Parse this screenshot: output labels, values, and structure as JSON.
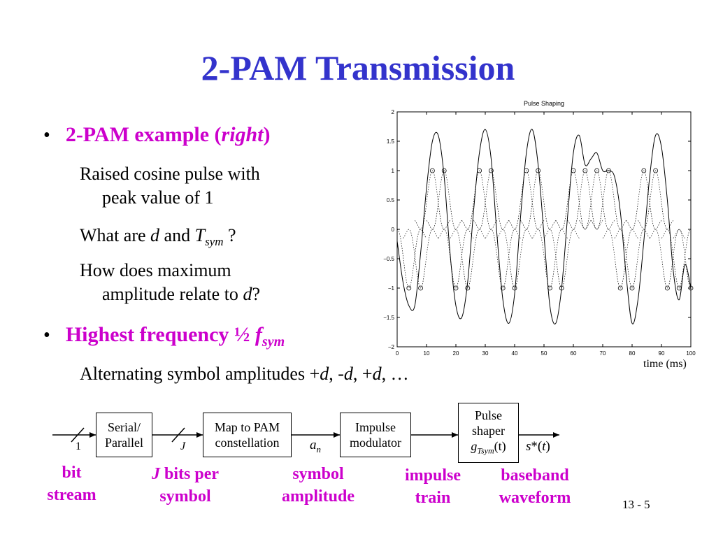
{
  "slide": {
    "title": "2-PAM Transmission",
    "page_number": "13 - 5"
  },
  "bullets": {
    "b1_dot": "•",
    "b1_text": "2-PAM example (",
    "b1_italic": "right",
    "b1_close": ")",
    "s1_line1": "Raised cosine pulse with",
    "s1_line2": "peak value of 1",
    "s2_pre": "What are ",
    "s2_d": "d",
    "s2_mid": " and ",
    "s2_T": "T",
    "s2_sub": "sym",
    "s2_end": " ?",
    "s3_line1": "How does maximum",
    "s3_line2_pre": "amplitude relate to ",
    "s3_d": "d",
    "s3_end": "?",
    "b2_dot": "•",
    "b2_text": "Highest frequency ½ ",
    "b2_f": "f",
    "b2_sub": "sym",
    "s4_pre": "Alternating symbol amplitudes +",
    "s4_d1": "d",
    "s4_m1": ", -",
    "s4_d2": "d",
    "s4_m2": ", +",
    "s4_d3": "d",
    "s4_end": ", …"
  },
  "diagram": {
    "serial_l1": "Serial/",
    "serial_l2": "Parallel",
    "map_l1": "Map to PAM",
    "map_l2": "constellation",
    "imp_l1": "Impulse",
    "imp_l2": "modulator",
    "ps_l1": "Pulse",
    "ps_l2": "shaper",
    "ps_g": "g",
    "ps_gsub": "Tsym",
    "ps_t": "(t)",
    "in_label": "1",
    "j_label": "J",
    "an_a": "a",
    "an_n": "n",
    "out_s": "s",
    "out_rest": "*(",
    "out_t": "t",
    "out_close": ")",
    "lbl_bit_1": "bit",
    "lbl_bit_2": "stream",
    "lbl_j_1_i": "J",
    "lbl_j_1": " bits per",
    "lbl_j_2": "symbol",
    "lbl_sym_1": "symbol",
    "lbl_sym_2": "amplitude",
    "lbl_imp_1": "impulse",
    "lbl_imp_2": "train",
    "lbl_base_1": "baseband",
    "lbl_base_2": "waveform"
  },
  "chart_data": {
    "type": "line",
    "title": "Pulse Shaping",
    "xlabel": "time (ms)",
    "ylabel": "",
    "xlim": [
      0,
      100
    ],
    "ylim": [
      -2,
      2
    ],
    "xticks": [
      0,
      10,
      20,
      30,
      40,
      50,
      60,
      70,
      80,
      90,
      100
    ],
    "yticks": [
      2,
      1.5,
      1,
      0.5,
      0,
      -0.5,
      -1,
      -1.5,
      -2
    ],
    "ytick_labels": [
      "2",
      "1.5",
      "1",
      "0.5",
      "0",
      "−0.5",
      "−1",
      "−1.5",
      "−2"
    ],
    "symbol_period": 4,
    "symbols": [
      -1,
      -1,
      1,
      1,
      -1,
      -1,
      1,
      1,
      -1,
      -1,
      1,
      1,
      -1,
      -1,
      1,
      1,
      -1,
      -1,
      1,
      1,
      -1,
      -1,
      1,
      1,
      -1,
      -1,
      1,
      1,
      -1,
      -1,
      1,
      1,
      -1,
      -1,
      1,
      1,
      -1,
      -1,
      1,
      1,
      -1,
      -1,
      1,
      1,
      -1,
      -1,
      1,
      1,
      -1,
      -1,
      1,
      1,
      -1,
      -1,
      1,
      1,
      -1,
      -1,
      1,
      1,
      -1,
      -1,
      1,
      1,
      -1,
      -1,
      1,
      1,
      -1,
      -1,
      1,
      1,
      -1,
      -1,
      1,
      1,
      -1,
      -1,
      1,
      1,
      -1,
      -1,
      1,
      1,
      -1,
      -1,
      1,
      1,
      -1,
      -1,
      1,
      1,
      -1,
      -1,
      1,
      1,
      -1,
      -1,
      1,
      1
    ],
    "series": [
      {
        "style": "solid",
        "x": [
          0,
          2,
          4,
          6,
          8,
          10,
          12,
          14,
          16,
          18,
          20,
          22,
          24,
          26,
          28,
          30,
          32,
          34,
          36,
          38,
          40,
          42,
          44,
          46,
          48,
          50,
          52,
          54,
          56,
          58,
          60,
          62,
          64,
          66,
          68,
          70,
          72,
          74,
          76,
          78,
          80,
          82,
          84,
          86,
          88,
          90,
          92,
          94,
          96,
          98,
          100
        ],
        "y": [
          -0.2,
          -0.9,
          -1.3,
          -1.3,
          -0.4,
          0.7,
          1.5,
          1.6,
          0.9,
          -0.4,
          -1.3,
          -1.5,
          -0.9,
          0.3,
          1.3,
          1.7,
          1.2,
          -0.1,
          -1.2,
          -1.6,
          -1.1,
          0.2,
          1.3,
          1.7,
          1.1,
          -0.1,
          -1.3,
          -1.6,
          -1.0,
          0.2,
          1.3,
          1.6,
          1.1,
          1.2,
          1.3,
          1.0,
          1.0,
          0.9,
          0.3,
          -0.8,
          -1.6,
          -1.2,
          -0.2,
          0.9,
          1.6,
          1.4,
          0.5,
          -0.7,
          -1.2,
          -0.6,
          -1.0
        ]
      }
    ],
    "markers_x": [
      4,
      8,
      12,
      16,
      20,
      24,
      28,
      32,
      36,
      40,
      44,
      48,
      52,
      56,
      60,
      64,
      68,
      72,
      76,
      80,
      84,
      88,
      92,
      96,
      100
    ],
    "markers_y": [
      -1,
      -1,
      1,
      1,
      -1,
      -1,
      1,
      1,
      -1,
      -1,
      1,
      1,
      -1,
      -1,
      1,
      1,
      1,
      1,
      -1,
      -1,
      1,
      1,
      -1,
      -1,
      -1
    ]
  },
  "colors": {
    "title": "#3333cc",
    "highlight": "#cc00cc",
    "text": "#000000"
  }
}
